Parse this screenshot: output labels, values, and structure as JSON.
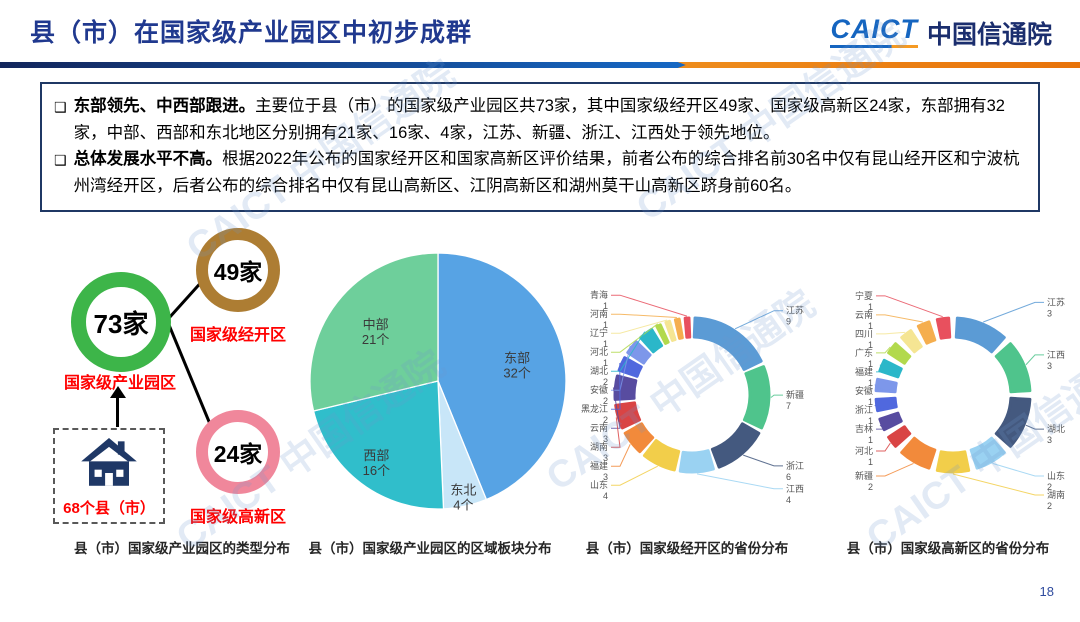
{
  "header": {
    "title": "县（市）在国家级产业园区中初步成群",
    "logo_text": "CAICT",
    "logo_cn": "中国信通院"
  },
  "watermark": "CAICT 中国信通院",
  "summary": {
    "bullets": [
      {
        "lead": "东部领先、中西部跟进。",
        "text": "主要位于县（市）的国家级产业园区共73家，其中国家级经开区49家、国家级高新区24家，东部拥有32家，中部、西部和东北地区分别拥有21家、16家、4家，江苏、新疆、浙江、江西处于领先地位。"
      },
      {
        "lead": "总体发展水平不高。",
        "text": "根据2022年公布的国家经开区和国家高新区评价结果，前者公布的综合排名前30名中仅有昆山经开区和宁波杭州湾经开区，后者公布的综合排名中仅有昆山高新区、江阴高新区和湖州莫干山高新区跻身前60名。"
      }
    ]
  },
  "type_diagram": {
    "total": {
      "value": "73家",
      "label": "国家级产业园区",
      "ring_color": "#3DB549"
    },
    "jingkaiqu": {
      "value": "49家",
      "label": "国家级经开区",
      "ring_color": "#AD7D33"
    },
    "gaoxinqu": {
      "value": "24家",
      "label": "国家级高新区",
      "ring_color": "#F0879B"
    },
    "source": {
      "label": "68个县（市）",
      "icon": "house-icon",
      "icon_color": "#1F3866"
    }
  },
  "captions": [
    "县（市）国家级产业园区的类型分布",
    "县（市）国家级产业园区的区域板块分布",
    "县（市）国家级经开区的省份分布",
    "县（市）国家级高新区的省份分布"
  ],
  "page_number": "18",
  "chart_data": [
    {
      "type": "pie",
      "title": "县（市）国家级产业园区的区域板块分布",
      "unit": "个",
      "total": 73,
      "start_angle": "12-oclock",
      "clockwise": true,
      "segments": [
        {
          "name": "东部",
          "value": 32,
          "color": "#57A3E4"
        },
        {
          "name": "东北",
          "value": 4,
          "color": "#C8E6F8"
        },
        {
          "name": "西部",
          "value": 16,
          "color": "#30BECB"
        },
        {
          "name": "中部",
          "value": 21,
          "color": "#6ECF9B"
        }
      ]
    },
    {
      "type": "donut",
      "title": "县（市）国家级经开区的省份分布",
      "total": 49,
      "segments": [
        {
          "name": "江苏",
          "value": 9,
          "color": "#5B9BD5"
        },
        {
          "name": "新疆",
          "value": 7,
          "color": "#4FC48C"
        },
        {
          "name": "浙江",
          "value": 6,
          "color": "#44597F"
        },
        {
          "name": "江西",
          "value": 4,
          "color": "#9AD2F2"
        },
        {
          "name": "山东",
          "value": 4,
          "color": "#F2CE4A"
        },
        {
          "name": "福建",
          "value": 3,
          "color": "#F28A3B"
        },
        {
          "name": "湖南",
          "value": 3,
          "color": "#D94444"
        },
        {
          "name": "云南",
          "value": 3,
          "color": "#584CA0"
        },
        {
          "name": "黑龙江",
          "value": 2,
          "color": "#5068DE"
        },
        {
          "name": "安徽",
          "value": 2,
          "color": "#7D97EA"
        },
        {
          "name": "湖北",
          "value": 2,
          "color": "#2BB7C9"
        },
        {
          "name": "河北",
          "value": 1,
          "color": "#B2D94D"
        },
        {
          "name": "辽宁",
          "value": 1,
          "color": "#F5E593"
        },
        {
          "name": "河南",
          "value": 1,
          "color": "#F5AE4E"
        },
        {
          "name": "青海",
          "value": 1,
          "color": "#E8505E"
        }
      ]
    },
    {
      "type": "donut",
      "title": "县（市）国家级高新区的省份分布",
      "total": 24,
      "segments": [
        {
          "name": "江苏",
          "value": 3,
          "color": "#5B9BD5"
        },
        {
          "name": "江西",
          "value": 3,
          "color": "#4FC48C"
        },
        {
          "name": "湖北",
          "value": 3,
          "color": "#44597F"
        },
        {
          "name": "山东",
          "value": 2,
          "color": "#9AD2F2"
        },
        {
          "name": "湖南",
          "value": 2,
          "color": "#F2CE4A"
        },
        {
          "name": "新疆",
          "value": 2,
          "color": "#F28A3B"
        },
        {
          "name": "河北",
          "value": 1,
          "color": "#D94444"
        },
        {
          "name": "吉林",
          "value": 1,
          "color": "#584CA0"
        },
        {
          "name": "浙江",
          "value": 1,
          "color": "#5068DE"
        },
        {
          "name": "安徽",
          "value": 1,
          "color": "#7D97EA"
        },
        {
          "name": "福建",
          "value": 1,
          "color": "#2BB7C9"
        },
        {
          "name": "广东",
          "value": 1,
          "color": "#B2D94D"
        },
        {
          "name": "四川",
          "value": 1,
          "color": "#F5E593"
        },
        {
          "name": "云南",
          "value": 1,
          "color": "#F5AE4E"
        },
        {
          "name": "宁夏",
          "value": 1,
          "color": "#E8505E"
        }
      ]
    }
  ]
}
